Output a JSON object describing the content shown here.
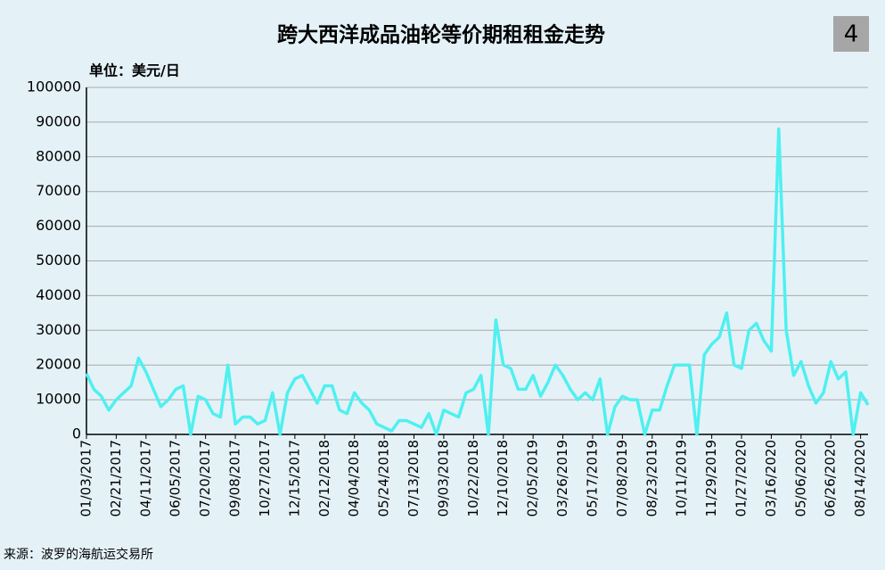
{
  "chart_data": {
    "type": "line",
    "title": "跨大西洋成品油轮等价期租租金走势",
    "badge": "4",
    "unit_label": "单位：美元/日",
    "source": "来源：波罗的海航运交易所",
    "categories": [
      "01/03/2017",
      null,
      null,
      null,
      "02/21/2017",
      null,
      null,
      null,
      "04/11/2017",
      null,
      null,
      null,
      "06/05/2017",
      null,
      null,
      null,
      "07/20/2017",
      null,
      null,
      null,
      "09/08/2017",
      null,
      null,
      null,
      "10/27/2017",
      null,
      null,
      null,
      "12/15/2017",
      null,
      null,
      null,
      "02/12/2018",
      null,
      null,
      null,
      "04/04/2018",
      null,
      null,
      null,
      "05/24/2018",
      null,
      null,
      null,
      "07/13/2018",
      null,
      null,
      null,
      "09/03/2018",
      null,
      null,
      null,
      "10/22/2018",
      null,
      null,
      null,
      "12/10/2018",
      null,
      null,
      null,
      "02/05/2019",
      null,
      null,
      null,
      "03/26/2019",
      null,
      null,
      null,
      "05/17/2019",
      null,
      null,
      null,
      "07/08/2019",
      null,
      null,
      null,
      "08/23/2019",
      null,
      null,
      null,
      "10/11/2019",
      null,
      null,
      null,
      "11/29/2019",
      null,
      null,
      null,
      "01/27/2020",
      null,
      null,
      null,
      "03/16/2020",
      null,
      null,
      null,
      "05/06/2020",
      null,
      null,
      null,
      "06/26/2020",
      null,
      null,
      null,
      "08/14/2020",
      null
    ],
    "series": [
      {
        "name": "等价期租租金",
        "color": "#4ff0f0",
        "values": [
          17500,
          13000,
          11000,
          7000,
          10000,
          12000,
          14000,
          22000,
          18000,
          13000,
          8000,
          10000,
          13000,
          14000,
          0,
          11000,
          10000,
          6000,
          5000,
          20000,
          3000,
          5000,
          5000,
          3000,
          4000,
          12000,
          0,
          12000,
          16000,
          17000,
          13000,
          9000,
          14000,
          14000,
          7000,
          6000,
          12000,
          9000,
          7000,
          3000,
          2000,
          1000,
          4000,
          4000,
          3000,
          2000,
          6000,
          0,
          7000,
          6000,
          5000,
          12000,
          13000,
          17000,
          0,
          33000,
          20000,
          19000,
          13000,
          13000,
          17000,
          11000,
          15000,
          20000,
          17000,
          13000,
          10000,
          12000,
          10000,
          16000,
          0,
          8000,
          11000,
          10000,
          10000,
          0,
          7000,
          7000,
          14000,
          20000,
          20000,
          20000,
          0,
          23000,
          26000,
          28000,
          35000,
          20000,
          19000,
          30000,
          32000,
          27000,
          24000,
          88000,
          30000,
          17000,
          21000,
          14000,
          9000,
          12000,
          21000,
          16000,
          18000,
          0,
          12000,
          8500
        ]
      }
    ],
    "ylim": [
      0,
      100000
    ],
    "yticks": [
      0,
      10000,
      20000,
      30000,
      40000,
      50000,
      60000,
      70000,
      80000,
      90000,
      100000
    ],
    "grid": true
  }
}
